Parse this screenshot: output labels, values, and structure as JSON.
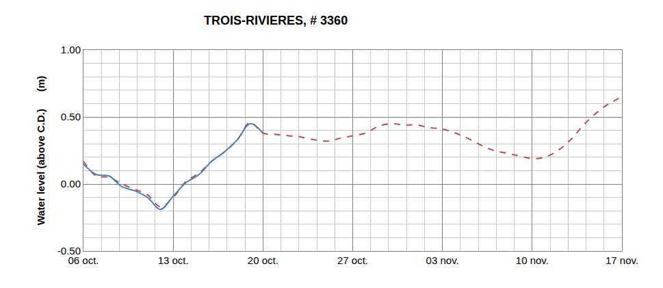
{
  "chart_data": {
    "type": "line",
    "title": "TROIS-RIVIERES, # 3360",
    "y_label": "Water level (above C.D.)      (m)",
    "categories": [
      "06 oct.",
      null,
      null,
      null,
      null,
      null,
      null,
      "13 oct.",
      null,
      null,
      null,
      null,
      null,
      null,
      "20 oct.",
      null,
      null,
      null,
      null,
      null,
      null,
      "27 oct.",
      null,
      null,
      null,
      null,
      null,
      null,
      "03 nov.",
      null,
      null,
      null,
      null,
      null,
      null,
      "10 nov.",
      null,
      null,
      null,
      null,
      null,
      null,
      "17 nov."
    ],
    "series": [
      {
        "color": "#be4b48",
        "line_style": "dash",
        "values": [
          0.17,
          0.06,
          0.05,
          0.0,
          -0.04,
          -0.08,
          -0.17,
          -0.1,
          0.02,
          0.08,
          0.17,
          0.24,
          0.33,
          0.46,
          0.38,
          0.37,
          0.36,
          0.35,
          0.33,
          0.32,
          0.34,
          0.36,
          0.38,
          0.43,
          0.45,
          0.44,
          0.44,
          0.42,
          0.41,
          0.38,
          0.34,
          0.29,
          0.25,
          0.23,
          0.21,
          0.19,
          0.2,
          0.25,
          0.33,
          0.44,
          0.53,
          0.6,
          0.65
        ]
      },
      {
        "color": "#4a7ebb",
        "line_style": "solid",
        "values": [
          0.15,
          0.07,
          0.06,
          -0.02,
          -0.05,
          -0.1,
          -0.19,
          -0.09,
          0.01,
          0.07,
          0.17,
          0.24,
          0.33,
          0.45,
          0.38,
          null,
          null,
          null,
          null,
          null,
          null,
          null,
          null,
          null,
          null,
          null,
          null,
          null,
          null,
          null,
          null,
          null,
          null,
          null,
          null,
          null,
          null,
          null,
          null,
          null,
          null,
          null,
          null
        ]
      }
    ],
    "ylim": [
      -0.5,
      1.0
    ],
    "yticks": [
      {
        "value": -0.5,
        "label": "-0.50"
      },
      {
        "value": 0,
        "label": "0.00"
      },
      {
        "value": 0.5,
        "label": "0.50"
      },
      {
        "value": 1.0,
        "label": "1.00"
      }
    ],
    "grid": true
  }
}
